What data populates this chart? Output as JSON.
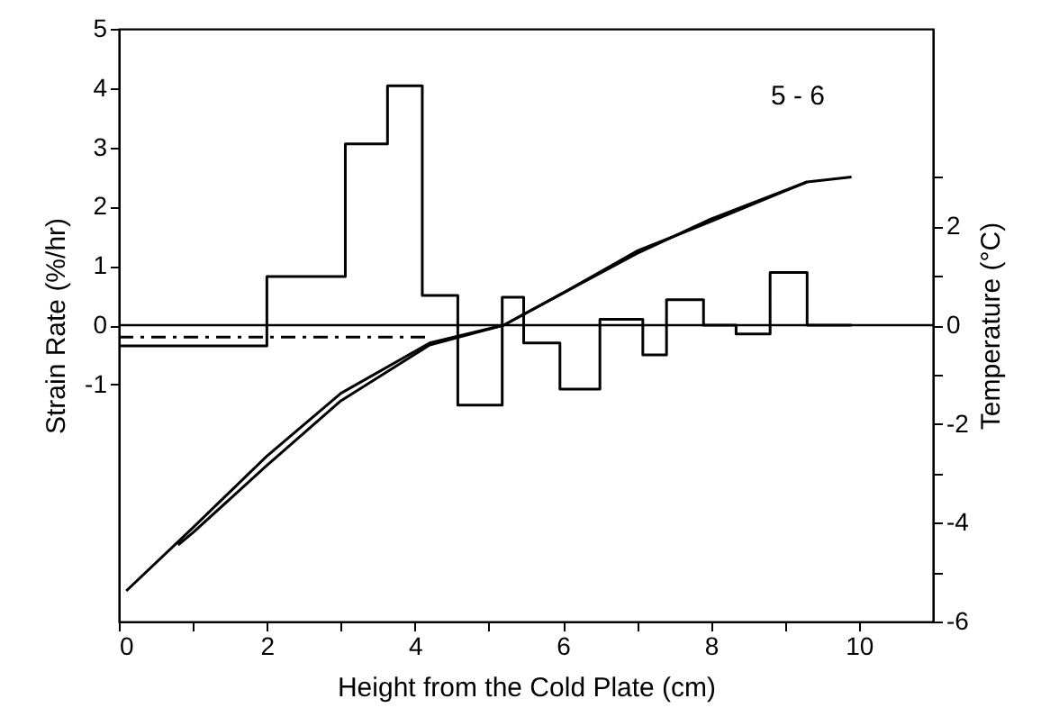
{
  "chart_data": {
    "type": "step",
    "xlabel": "Height from the Cold Plate (cm)",
    "ylabel": "Strain Rate (%/hr)",
    "y2label": "Temperature (°C)",
    "xlim": [
      0,
      11
    ],
    "xticks": [
      0,
      {
        "value": 1,
        "label": null
      },
      2,
      {
        "value": 3,
        "label": null
      },
      4,
      {
        "value": 5,
        "label": null
      },
      6,
      {
        "value": 7,
        "label": null
      },
      8,
      {
        "value": 9,
        "label": null
      },
      10
    ],
    "ylim": [
      -5,
      5
    ],
    "yticks": [
      -1,
      0,
      1,
      2,
      3,
      4,
      5
    ],
    "y2lim": [
      -6,
      6
    ],
    "y2ticks": [
      -6,
      {
        "value": -5,
        "label": null
      },
      -4,
      {
        "value": -3,
        "label": null
      },
      -2,
      {
        "value": -1,
        "label": null
      },
      0,
      {
        "value": 1,
        "label": null
      },
      2,
      {
        "value": 3,
        "label": null
      }
    ],
    "annotations": [
      "5 - 6"
    ],
    "ref_lines": [
      {
        "axis": "y",
        "value": 0,
        "label": null,
        "color": "#000000"
      }
    ],
    "series": [
      {
        "type": "step",
        "color": "#000000",
        "x": [
          0,
          2,
          3.06,
          3.63,
          4.1,
          4.58,
          5.18,
          5.47,
          5.96,
          6.5,
          7.08,
          7.4,
          7.9,
          8.34,
          8.8,
          9.3,
          9.9
        ],
        "values": [
          -0.35,
          0.82,
          3.06,
          4.04,
          0.5,
          -1.35,
          0.47,
          -0.3,
          -1.08,
          0.1,
          -0.5,
          0.43,
          0,
          -0.15,
          0.89,
          0,
          0
        ]
      },
      {
        "type": "line",
        "color": "#000000",
        "line_style": "dashed",
        "x": [
          0,
          4.2
        ],
        "values": [
          -0.2,
          -0.2
        ]
      },
      {
        "type": "line",
        "color": "#000000",
        "axis": "y2",
        "x": [
          0.1,
          1,
          2,
          3,
          4.2,
          5.2,
          6,
          7,
          8,
          9.3,
          9.9
        ],
        "values": [
          -5.38,
          -4.1,
          -2.65,
          -1.38,
          -0.36,
          0,
          0.65,
          1.5,
          2.1,
          2.9,
          3.0
        ]
      },
      {
        "type": "line",
        "color": "#000000",
        "axis": "y2",
        "x": [
          0.8,
          1,
          2,
          3,
          4.2,
          5.2,
          6,
          7,
          8,
          9.3
        ],
        "values": [
          -4.45,
          -4.2,
          -2.84,
          -1.53,
          -0.4,
          0,
          0.65,
          1.45,
          2.15,
          2.9
        ]
      }
    ]
  }
}
